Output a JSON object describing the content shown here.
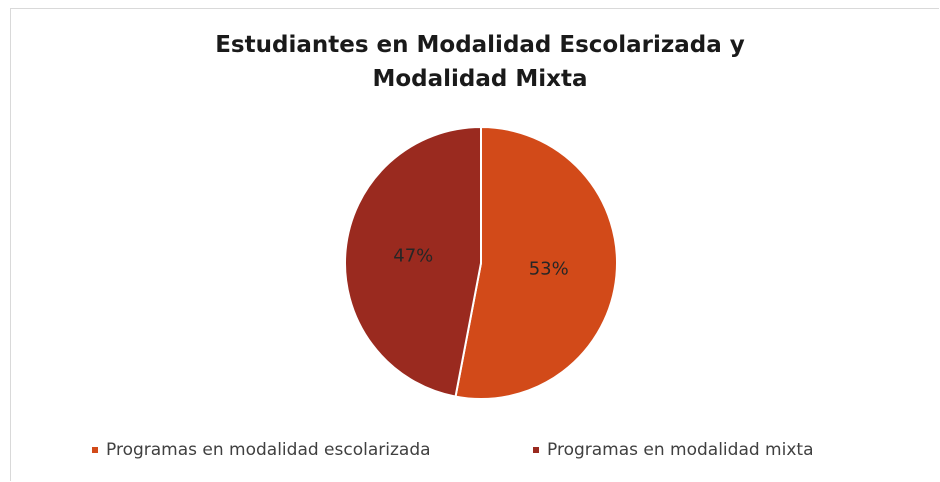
{
  "chart_data": {
    "type": "pie",
    "title": "Estudiantes en Modalidad Escolarizada y Modalidad Mixta",
    "categories": [
      "Programas en modalidad escolarizada",
      "Programas en modalidad mixta"
    ],
    "values": [
      53,
      47
    ],
    "value_labels": [
      "53%",
      "47%"
    ],
    "colors": [
      "#d24a19",
      "#9a2a1f"
    ],
    "legend": "bottom"
  }
}
